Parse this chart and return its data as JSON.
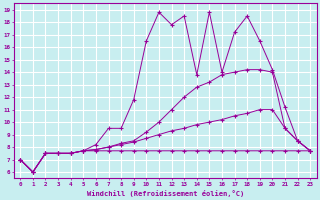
{
  "xlabel": "Windchill (Refroidissement éolien,°C)",
  "background_color": "#c8eef0",
  "line_color": "#990099",
  "grid_color": "#ffffff",
  "xlim": [
    -0.5,
    23.5
  ],
  "ylim": [
    5.5,
    19.5
  ],
  "xticks": [
    0,
    1,
    2,
    3,
    4,
    5,
    6,
    7,
    8,
    9,
    10,
    11,
    12,
    13,
    14,
    15,
    16,
    17,
    18,
    19,
    20,
    21,
    22,
    23
  ],
  "yticks": [
    6,
    7,
    8,
    9,
    10,
    11,
    12,
    13,
    14,
    15,
    16,
    17,
    18,
    19
  ],
  "line1_x": [
    0,
    1,
    2,
    3,
    4,
    5,
    6,
    7,
    8,
    9,
    10,
    11,
    12,
    13,
    14,
    15,
    16,
    17,
    18,
    19,
    20,
    21,
    22,
    23
  ],
  "line1_y": [
    7.0,
    6.0,
    7.5,
    7.5,
    7.5,
    7.7,
    8.2,
    9.5,
    9.5,
    11.8,
    16.5,
    18.8,
    17.8,
    18.5,
    13.8,
    18.8,
    14.0,
    17.2,
    18.5,
    16.5,
    14.2,
    11.2,
    8.5,
    7.7
  ],
  "line2_x": [
    0,
    1,
    2,
    3,
    4,
    5,
    6,
    7,
    8,
    9,
    10,
    11,
    12,
    13,
    14,
    15,
    16,
    17,
    18,
    19,
    20,
    21,
    22,
    23
  ],
  "line2_y": [
    7.0,
    6.0,
    7.5,
    7.5,
    7.5,
    7.7,
    7.8,
    8.0,
    8.3,
    8.5,
    9.2,
    10.0,
    11.0,
    12.0,
    12.8,
    13.2,
    13.8,
    14.0,
    14.2,
    14.2,
    14.0,
    9.5,
    8.5,
    7.7
  ],
  "line3_x": [
    0,
    1,
    2,
    3,
    4,
    5,
    6,
    7,
    8,
    9,
    10,
    11,
    12,
    13,
    14,
    15,
    16,
    17,
    18,
    19,
    20,
    21,
    22,
    23
  ],
  "line3_y": [
    7.0,
    6.0,
    7.5,
    7.5,
    7.5,
    7.7,
    7.8,
    8.0,
    8.2,
    8.4,
    8.7,
    9.0,
    9.3,
    9.5,
    9.8,
    10.0,
    10.2,
    10.5,
    10.7,
    11.0,
    11.0,
    9.5,
    8.5,
    7.7
  ],
  "line4_x": [
    0,
    1,
    2,
    3,
    4,
    5,
    6,
    7,
    8,
    9,
    10,
    11,
    12,
    13,
    14,
    15,
    16,
    17,
    18,
    19,
    20,
    21,
    22,
    23
  ],
  "line4_y": [
    7.0,
    6.0,
    7.5,
    7.5,
    7.5,
    7.7,
    7.7,
    7.7,
    7.7,
    7.7,
    7.7,
    7.7,
    7.7,
    7.7,
    7.7,
    7.7,
    7.7,
    7.7,
    7.7,
    7.7,
    7.7,
    7.7,
    7.7,
    7.7
  ]
}
